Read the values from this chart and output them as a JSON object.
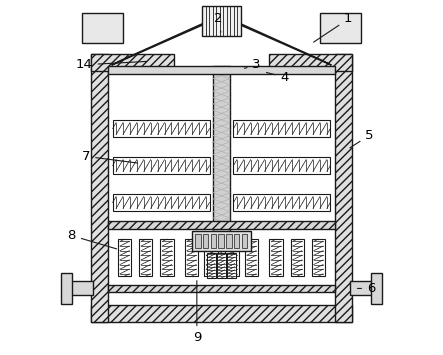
{
  "bg_color": "#ffffff",
  "line_color": "#1a1a1a",
  "fill_light": "#e8e8e8",
  "fill_medium": "#cccccc",
  "figsize": [
    4.43,
    3.55
  ],
  "dpi": 100
}
